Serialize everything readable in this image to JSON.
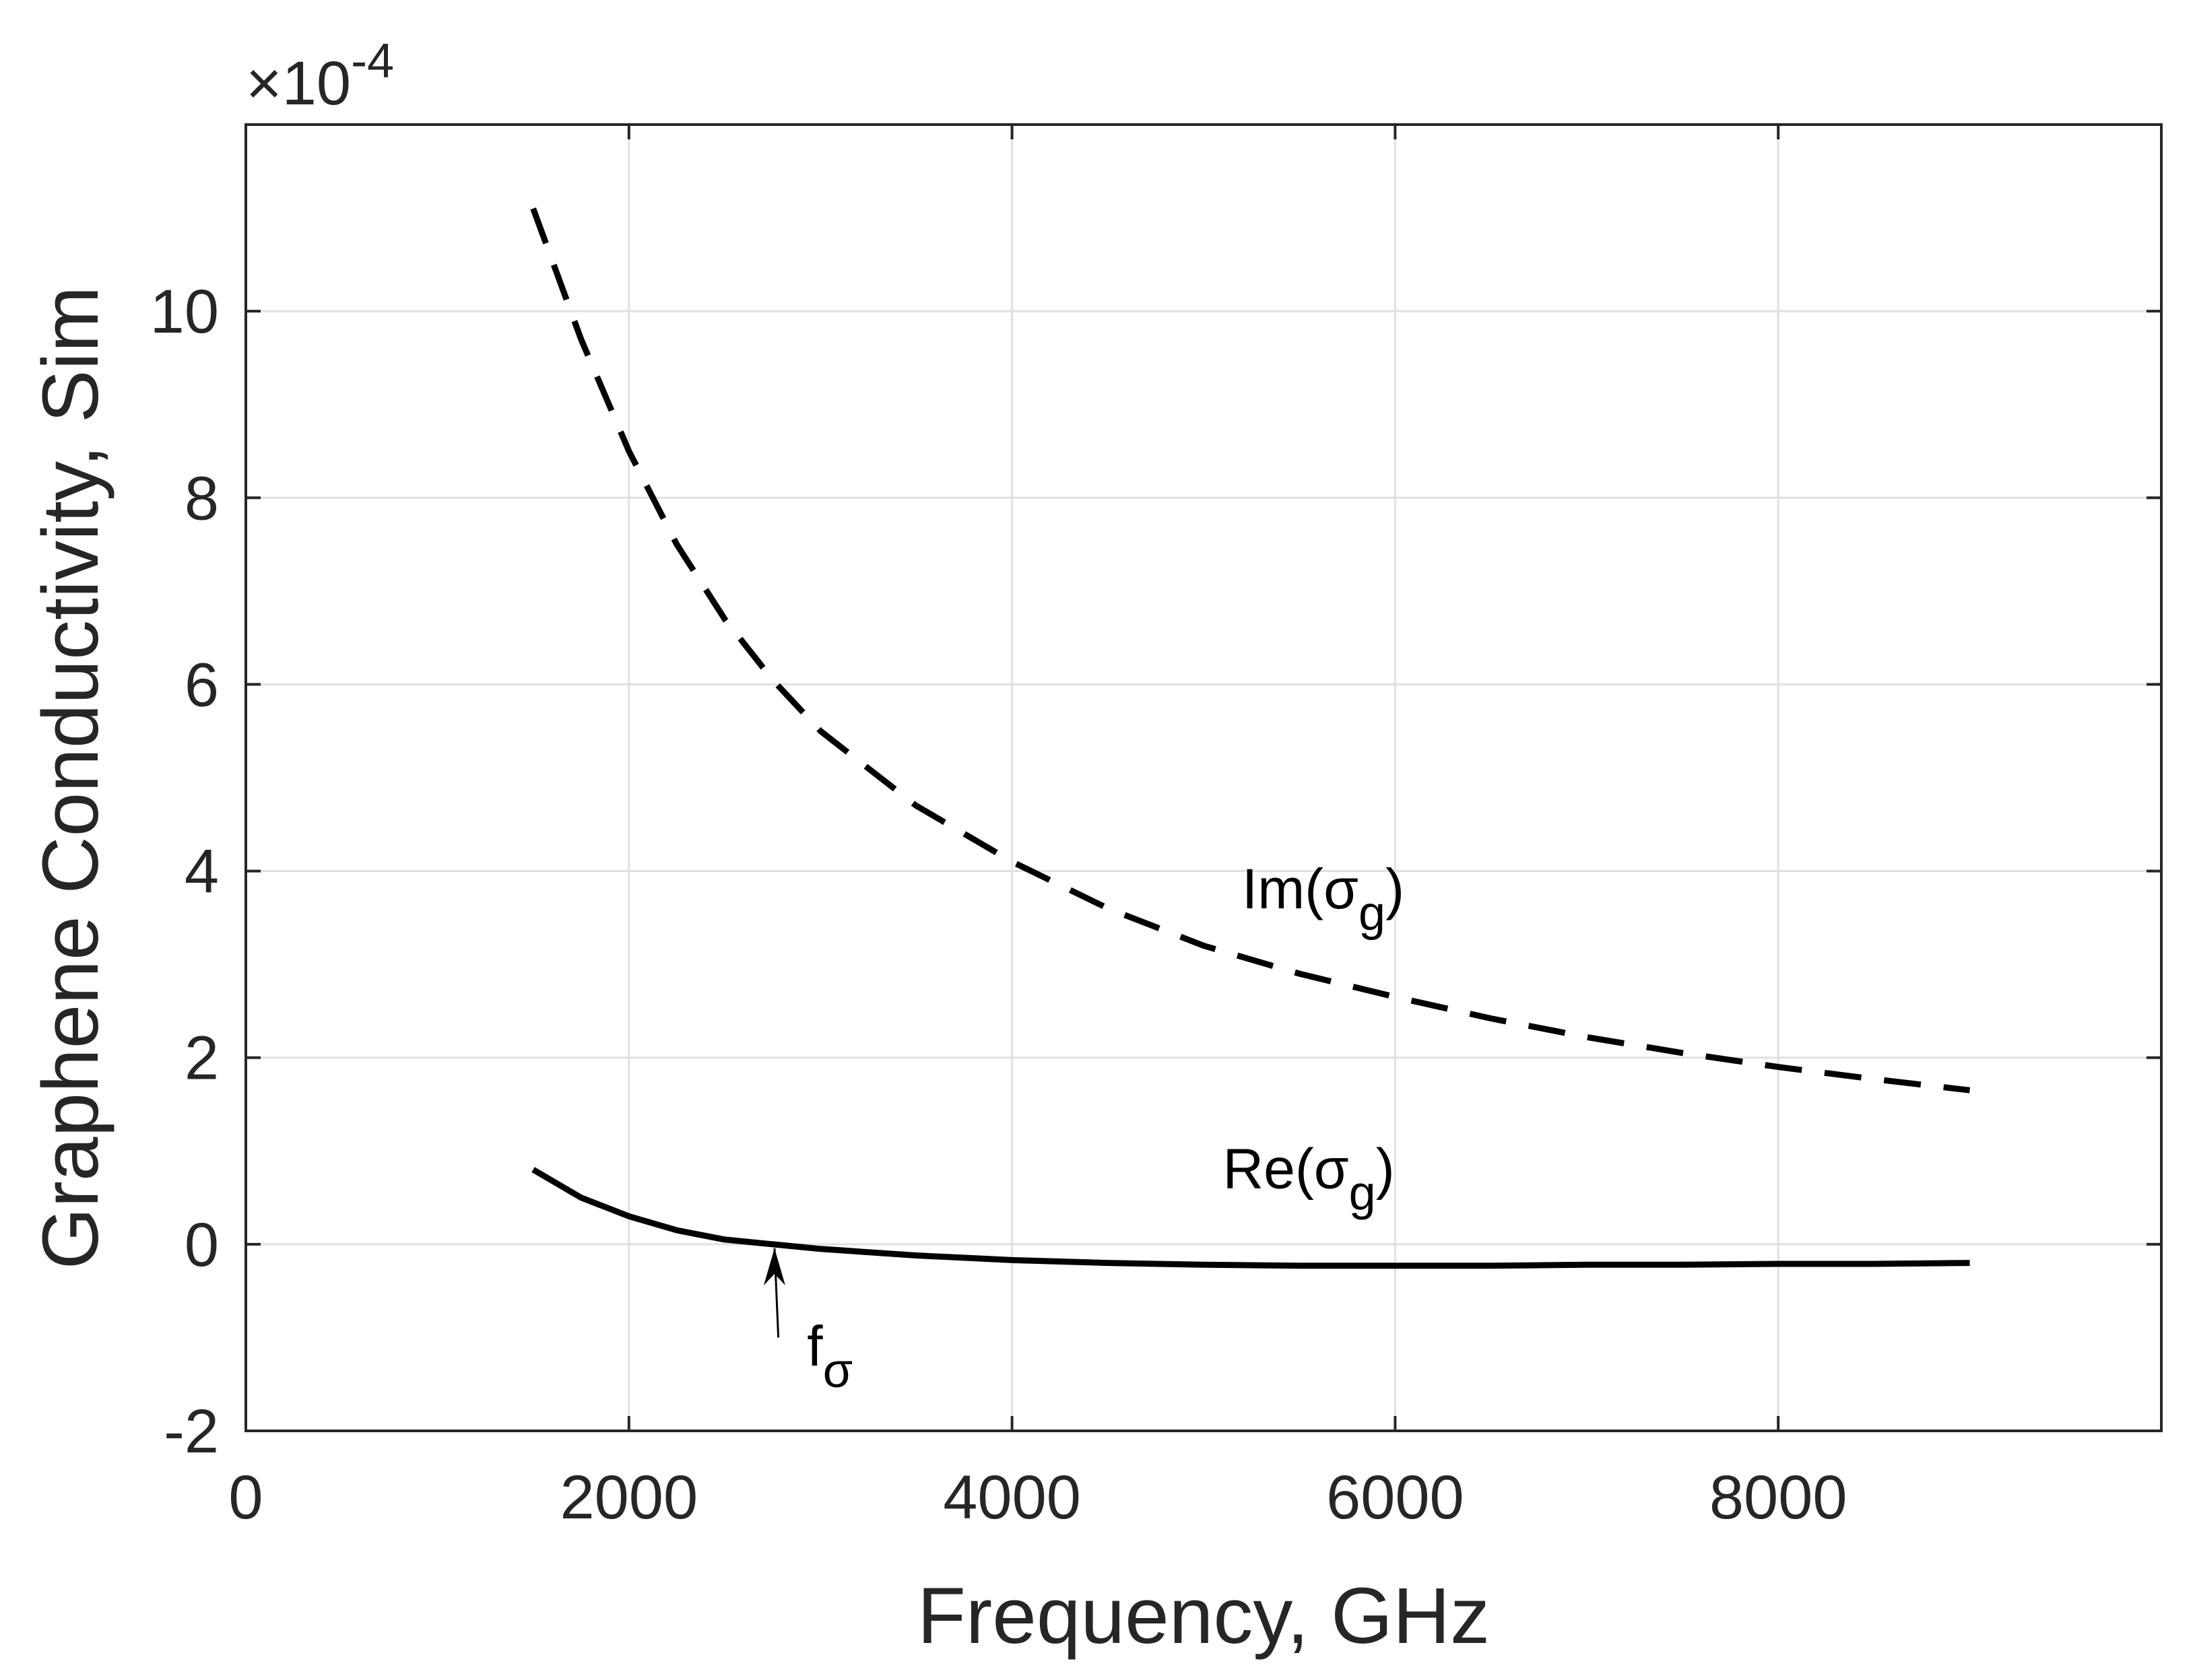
{
  "chart_data": {
    "type": "line",
    "title": "",
    "xlabel": "Frequency, GHz",
    "ylabel": "Graphene Conductivity, Sim",
    "xlim": [
      0,
      10000
    ],
    "ylim": [
      -2,
      12
    ],
    "y_exponent_label": {
      "base": "×10",
      "exp": "-4"
    },
    "grid": true,
    "x_ticks": [
      {
        "value": 0,
        "label": "0"
      },
      {
        "value": 2000,
        "label": "2000"
      },
      {
        "value": 4000,
        "label": "4000"
      },
      {
        "value": 6000,
        "label": "6000"
      },
      {
        "value": 8000,
        "label": "8000"
      }
    ],
    "y_ticks": [
      {
        "value": -2,
        "label": "-2"
      },
      {
        "value": 0,
        "label": "0"
      },
      {
        "value": 2,
        "label": "2"
      },
      {
        "value": 4,
        "label": "4"
      },
      {
        "value": 6,
        "label": "6"
      },
      {
        "value": 8,
        "label": "8"
      },
      {
        "value": 10,
        "label": "10"
      }
    ],
    "series": [
      {
        "name": "Im(σg)",
        "style": "dashed",
        "x": [
          1500,
          1750,
          2000,
          2250,
          2500,
          2750,
          3000,
          3500,
          4000,
          4500,
          5000,
          5500,
          6000,
          6500,
          7000,
          7500,
          8000,
          8500,
          9000
        ],
        "y": [
          11.1,
          9.7,
          8.5,
          7.5,
          6.7,
          6.05,
          5.5,
          4.7,
          4.1,
          3.6,
          3.2,
          2.9,
          2.65,
          2.42,
          2.22,
          2.05,
          1.9,
          1.77,
          1.65
        ]
      },
      {
        "name": "Re(σg)",
        "style": "solid",
        "x": [
          1500,
          1750,
          2000,
          2250,
          2500,
          2750,
          3000,
          3500,
          4000,
          4500,
          5000,
          5500,
          6000,
          6500,
          7000,
          7500,
          8000,
          8500,
          9000
        ],
        "y": [
          0.8,
          0.5,
          0.3,
          0.15,
          0.05,
          0.0,
          -0.05,
          -0.12,
          -0.17,
          -0.2,
          -0.22,
          -0.23,
          -0.23,
          -0.23,
          -0.22,
          -0.22,
          -0.21,
          -0.21,
          -0.2
        ]
      }
    ],
    "annotations": [
      {
        "id": "im",
        "main": "Im(σ",
        "sub": "g",
        "close": ")",
        "x": 5200,
        "y": 3.6
      },
      {
        "id": "re",
        "main": "Re(σ",
        "sub": "g",
        "close": ")",
        "x": 5100,
        "y": 0.6
      },
      {
        "id": "fsigma",
        "main": "f",
        "sub": "σ",
        "x": 2930,
        "y": -1.3,
        "arrow_from": [
          2780,
          -1.0
        ],
        "arrow_to": [
          2760,
          0.0
        ]
      }
    ]
  }
}
